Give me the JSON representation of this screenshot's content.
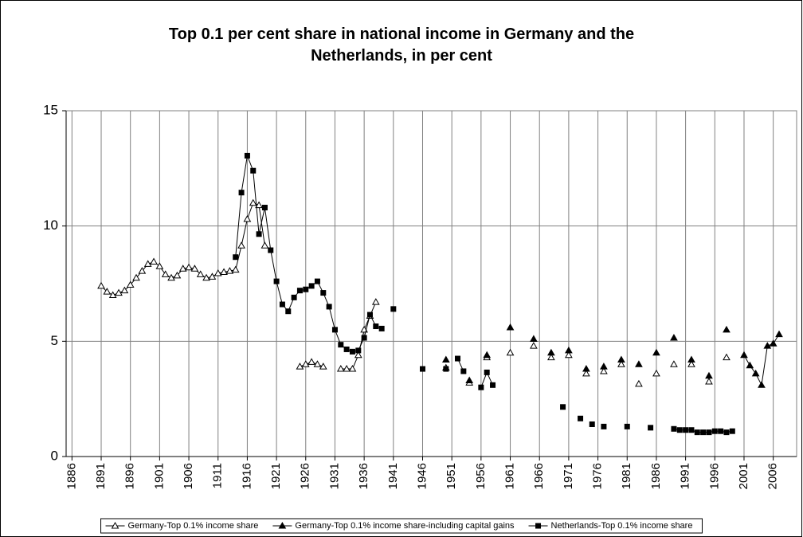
{
  "chart_data": {
    "type": "line",
    "title": "Top 0.1 per cent share in national income in Germany and the Netherlands, in per cent",
    "x": [
      1891,
      1892,
      1893,
      1894,
      1895,
      1896,
      1897,
      1898,
      1899,
      1900,
      1901,
      1902,
      1903,
      1904,
      1905,
      1906,
      1907,
      1908,
      1909,
      1910,
      1911,
      1912,
      1913,
      1914,
      1915,
      1916,
      1917,
      1918,
      1919,
      1920,
      1921,
      1922,
      1923,
      1924,
      1925,
      1926,
      1927,
      1928,
      1929,
      1930,
      1931,
      1932,
      1933,
      1934,
      1935,
      1936,
      1937,
      1938,
      1939,
      1940,
      1941,
      1942,
      1943,
      1944,
      1945,
      1946,
      1947,
      1948,
      1949,
      1950,
      1951,
      1952,
      1953,
      1954,
      1955,
      1956,
      1957,
      1958,
      1959,
      1960,
      1961,
      1962,
      1963,
      1964,
      1965,
      1966,
      1967,
      1968,
      1969,
      1970,
      1971,
      1972,
      1973,
      1974,
      1975,
      1976,
      1977,
      1978,
      1979,
      1980,
      1981,
      1982,
      1983,
      1984,
      1985,
      1986,
      1987,
      1988,
      1989,
      1990,
      1991,
      1992,
      1993,
      1994,
      1995,
      1996,
      1997,
      1998,
      1999,
      2000,
      2001,
      2002,
      2003,
      2004,
      2005,
      2006,
      2007
    ],
    "series": [
      {
        "name": "Germany-Top 0.1% income share",
        "color": "#000000",
        "marker": "triangle-open",
        "values": [
          7.4,
          7.15,
          7.0,
          7.1,
          7.2,
          7.45,
          7.75,
          8.05,
          8.35,
          8.45,
          8.25,
          7.9,
          7.75,
          7.85,
          8.15,
          8.2,
          8.15,
          7.9,
          7.75,
          7.8,
          7.95,
          8.0,
          8.05,
          8.1,
          9.15,
          10.3,
          11.0,
          10.9,
          9.15,
          null,
          null,
          null,
          null,
          null,
          3.9,
          4.0,
          4.1,
          4.0,
          3.9,
          null,
          null,
          3.8,
          3.8,
          3.8,
          4.4,
          5.5,
          6.1,
          6.7,
          null,
          null,
          null,
          null,
          null,
          null,
          null,
          null,
          null,
          null,
          null,
          3.85,
          null,
          null,
          null,
          3.2,
          null,
          null,
          4.3,
          null,
          null,
          null,
          4.5,
          null,
          null,
          null,
          4.8,
          null,
          null,
          4.3,
          null,
          null,
          4.4,
          null,
          null,
          3.6,
          null,
          null,
          3.7,
          null,
          null,
          4.0,
          null,
          null,
          3.15,
          null,
          null,
          3.6,
          null,
          null,
          4.0,
          null,
          null,
          4.0,
          null,
          null,
          3.25,
          null,
          null,
          4.3,
          null,
          null,
          null,
          null,
          null,
          null,
          null,
          null,
          null
        ]
      },
      {
        "name": "Germany-Top 0.1% income share-including capital gains",
        "color": "#000000",
        "marker": "triangle-filled",
        "values": [
          null,
          null,
          null,
          null,
          null,
          null,
          null,
          null,
          null,
          null,
          null,
          null,
          null,
          null,
          null,
          null,
          null,
          null,
          null,
          null,
          null,
          null,
          null,
          null,
          null,
          null,
          null,
          null,
          null,
          null,
          null,
          null,
          null,
          null,
          null,
          null,
          null,
          null,
          null,
          null,
          null,
          null,
          null,
          null,
          null,
          null,
          null,
          null,
          null,
          null,
          null,
          null,
          null,
          null,
          null,
          null,
          null,
          null,
          null,
          4.2,
          null,
          null,
          null,
          3.3,
          null,
          null,
          4.4,
          null,
          null,
          null,
          5.6,
          null,
          null,
          null,
          5.1,
          null,
          null,
          4.5,
          null,
          null,
          4.6,
          null,
          null,
          3.8,
          null,
          null,
          3.9,
          null,
          null,
          4.2,
          null,
          null,
          4.0,
          null,
          null,
          4.5,
          null,
          null,
          5.15,
          null,
          null,
          4.2,
          null,
          null,
          3.5,
          null,
          null,
          5.5,
          null,
          null,
          4.4,
          3.95,
          3.6,
          3.1,
          4.8,
          4.9,
          5.3
        ]
      },
      {
        "name": "Netherlands-Top 0.1% income share",
        "color": "#000000",
        "marker": "square",
        "values": [
          null,
          null,
          null,
          null,
          null,
          null,
          null,
          null,
          null,
          null,
          null,
          null,
          null,
          null,
          null,
          null,
          null,
          null,
          null,
          null,
          null,
          null,
          null,
          8.65,
          11.45,
          13.05,
          12.4,
          9.65,
          10.8,
          8.95,
          7.6,
          6.6,
          6.3,
          6.9,
          7.2,
          7.25,
          7.4,
          7.6,
          7.1,
          6.5,
          5.5,
          4.85,
          4.65,
          4.55,
          4.6,
          5.15,
          6.15,
          5.65,
          5.55,
          null,
          6.4,
          null,
          null,
          null,
          null,
          3.8,
          null,
          null,
          null,
          3.8,
          null,
          4.25,
          3.7,
          null,
          null,
          3.0,
          3.65,
          3.1,
          null,
          null,
          null,
          null,
          null,
          null,
          null,
          null,
          null,
          null,
          null,
          2.15,
          null,
          null,
          1.65,
          null,
          1.4,
          null,
          1.3,
          null,
          null,
          null,
          1.3,
          null,
          null,
          null,
          1.25,
          null,
          null,
          null,
          1.2,
          1.15,
          1.15,
          1.15,
          1.05,
          1.05,
          1.05,
          1.1,
          1.1,
          1.05,
          1.1,
          null,
          null,
          null,
          null,
          null,
          null,
          null,
          null
        ]
      }
    ],
    "xlim": [
      1885,
      2010
    ],
    "xticks": [
      1886,
      1891,
      1896,
      1901,
      1906,
      1911,
      1916,
      1921,
      1926,
      1931,
      1936,
      1941,
      1946,
      1951,
      1956,
      1961,
      1966,
      1971,
      1976,
      1981,
      1986,
      1991,
      1996,
      2001,
      2006
    ],
    "ylim": [
      0,
      15
    ],
    "yticks": [
      0,
      5,
      10,
      15
    ],
    "grid": true,
    "legend": "bottom"
  }
}
